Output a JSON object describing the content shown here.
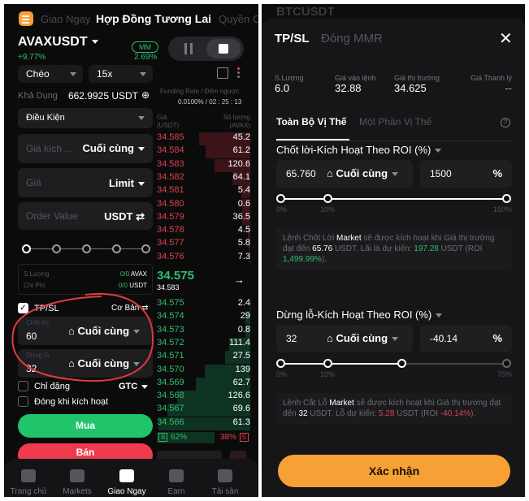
{
  "left": {
    "logo_icon": "menu-icon",
    "top_tabs": [
      "Giao Ngay",
      "Hợp Đồng Tương Lai",
      "Quyền Chọn"
    ],
    "symbol": "AVAXUSDT",
    "change": "+9.77%",
    "mm_label": "MM",
    "mm_value": "2.69%",
    "margin_mode": "Chéo",
    "leverage": "15x",
    "available_label": "Khả Dụng",
    "available_value": "662.9925 USDT",
    "funding_label": "Funding Rate / Đếm ngược",
    "funding_value": "0.0100% / 02 : 25 : 13",
    "order_type": "Điều Kiện",
    "trigger_placeholder": "Giá kích ...",
    "trigger_type": "Cuối cùng",
    "price_placeholder": "Giá",
    "price_type": "Limit",
    "order_value_placeholder": "Order Value",
    "order_value_unit": "USDT",
    "qty_label": "S.Lượng",
    "qty_value": "0/0",
    "qty_unit": "AVAX",
    "cost_label": "Chi Phí",
    "cost_value": "0/0",
    "cost_unit": "USDT",
    "tpsl_label": "TP/SL",
    "tpsl_mode": "Cơ Bản",
    "tp_label": "Chốt lời",
    "tp_value": "60",
    "tp_type": "Cuối cùng",
    "sl_label": "Dừng lỗ",
    "sl_value": "32",
    "sl_type": "Cuối cùng",
    "post_only": "Chỉ đặng",
    "tif": "GTC",
    "close_on_trigger": "Đóng khi kích hoạt",
    "buy": "Mua",
    "sell": "Bán",
    "orderbook": {
      "price_header": "Giá (USDT)",
      "qty_header": "Số lượng (AVAX)",
      "asks": [
        [
          "34.585",
          "45.2"
        ],
        [
          "34.584",
          "61.2"
        ],
        [
          "34.583",
          "120.6"
        ],
        [
          "34.582",
          "64.1"
        ],
        [
          "34.581",
          "5.4"
        ],
        [
          "34.580",
          "0.6"
        ],
        [
          "34.579",
          "36.5"
        ],
        [
          "34.578",
          "4.5"
        ],
        [
          "34.577",
          "5.8"
        ],
        [
          "34.576",
          "7.3"
        ]
      ],
      "last_price": "34.575",
      "mark_price": "34.583",
      "bids": [
        [
          "34.575",
          "2.4"
        ],
        [
          "34.574",
          "29"
        ],
        [
          "34.573",
          "0.8"
        ],
        [
          "34.572",
          "111.4"
        ],
        [
          "34.571",
          "27.5"
        ],
        [
          "34.570",
          "139"
        ],
        [
          "34.569",
          "62.7"
        ],
        [
          "34.568",
          "126.6"
        ],
        [
          "34.567",
          "69.6"
        ],
        [
          "34.566",
          "61.3"
        ]
      ],
      "buy_badge": "B",
      "buy_pct": "62%",
      "sell_pct": "38%",
      "sell_badge": "S"
    },
    "nav": [
      "Trang chủ",
      "Markets",
      "Giao Ngay",
      "Earn",
      "Tài sản"
    ],
    "colors": {
      "green": "#2fbf6b",
      "red": "#e0404e",
      "accent": "#f7a035"
    }
  },
  "right": {
    "bg_symbol": "BTCUSDT",
    "tabs": [
      "TP/SL",
      "Đóng MMR"
    ],
    "stats": [
      {
        "label": "S.Lượng",
        "value": "6.0"
      },
      {
        "label": "Giá vào lệnh",
        "value": "32.88"
      },
      {
        "label": "Giá thị trường",
        "value": "34.625"
      },
      {
        "label": "Giá Thanh lý",
        "value": "--"
      }
    ],
    "scope_tabs": [
      "Toàn Bộ Vị Thế",
      "Một Phần Vị Thế"
    ],
    "tp": {
      "title": "Chốt lời-Kích Hoạt Theo ROI (%)",
      "price": "65.760",
      "type": "Cuối cùng",
      "roi": "1500",
      "unit": "%",
      "slider_labels": [
        "0%",
        "10%",
        "150%"
      ],
      "info": [
        "Lệnh Chốt Lời ",
        "Market",
        " sẽ được kích hoạt khi Giá thị trường đạt đến ",
        "65.76",
        " USDT. Lãi là dự kiến: ",
        "197.28",
        " USDT (ROI ",
        "1,499.99%",
        ")."
      ]
    },
    "sl": {
      "title": "Dừng lỗ-Kích Hoạt Theo ROI (%)",
      "price": "32",
      "type": "Cuối cùng",
      "roi": "-40.14",
      "unit": "%",
      "slider_labels": [
        "0%",
        "10%",
        "75%"
      ],
      "slider_fill": 0.535,
      "info": [
        "Lệnh Cắt Lỗ ",
        "Market",
        " sẽ được kích hoạt khi Giá thị trường đạt đến ",
        "32",
        " USDT. Lỗ dự kiến: ",
        "5.28",
        " USDT (ROI ",
        "-40.14%",
        ")."
      ]
    },
    "confirm": "Xác nhận"
  }
}
